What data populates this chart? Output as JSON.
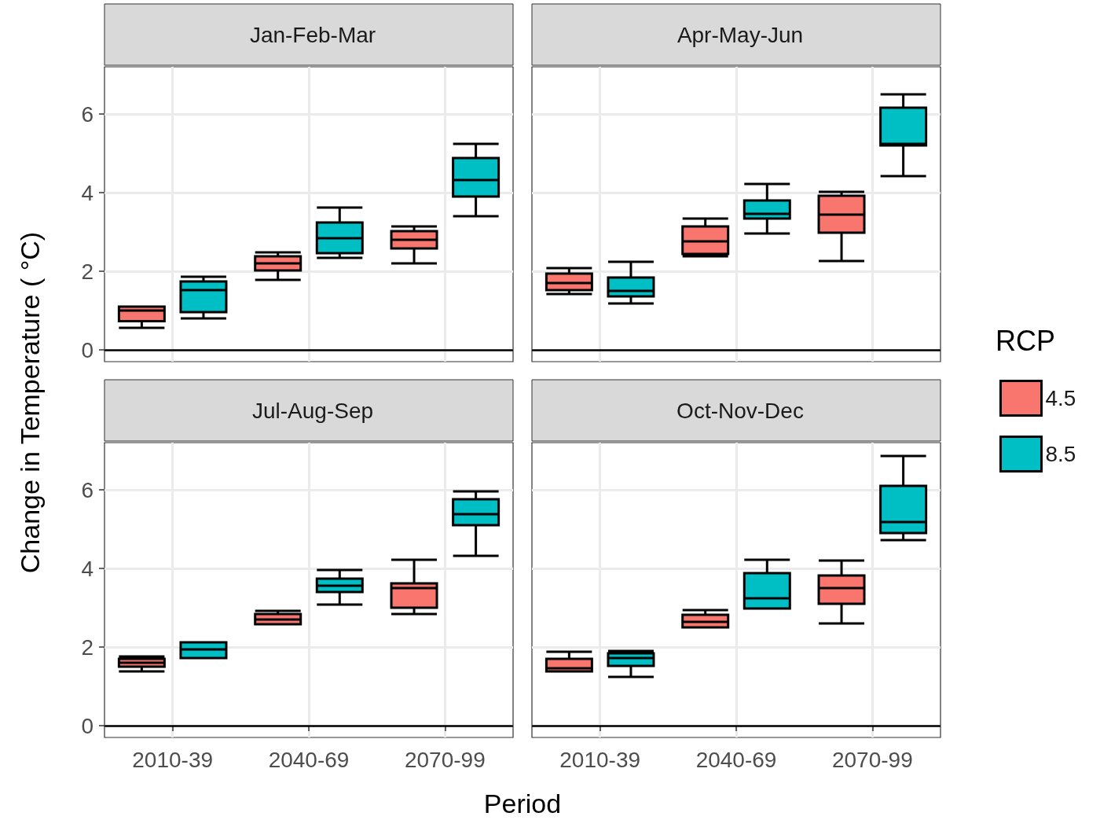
{
  "chart_data": [
    {
      "type": "box",
      "title": "Jan-Feb-Mar",
      "ylabel": "Change in Temperature ( °C)",
      "categories": [
        "2010-39",
        "2040-69",
        "2070-99"
      ],
      "ylim": [
        -0.3,
        7.2
      ],
      "yticks": [
        0,
        2,
        4,
        6
      ],
      "grid": true,
      "tick_labels": "y",
      "ref_lines": [
        {
          "axis": "y",
          "value": 0,
          "color": "#000000"
        }
      ],
      "series": [
        {
          "color": "#f8766d",
          "boxes": [
            {
              "low": 0.56,
              "q1": 0.73,
              "median": 1.0,
              "q3": 1.1,
              "high": 1.1
            },
            {
              "low": 1.78,
              "q1": 2.02,
              "median": 2.2,
              "q3": 2.38,
              "high": 2.48
            },
            {
              "low": 2.2,
              "q1": 2.58,
              "median": 2.8,
              "q3": 3.02,
              "high": 3.14
            }
          ]
        },
        {
          "color": "#00bfc4",
          "boxes": [
            {
              "low": 0.8,
              "q1": 0.96,
              "median": 1.52,
              "q3": 1.74,
              "high": 1.86
            },
            {
              "low": 2.34,
              "q1": 2.46,
              "median": 2.84,
              "q3": 3.24,
              "high": 3.62
            },
            {
              "low": 3.4,
              "q1": 3.9,
              "median": 4.32,
              "q3": 4.88,
              "high": 5.24
            }
          ]
        }
      ]
    },
    {
      "type": "box",
      "title": "Apr-May-Jun",
      "categories": [
        "2010-39",
        "2040-69",
        "2070-99"
      ],
      "ylim": [
        -0.3,
        7.2
      ],
      "yticks": [
        0,
        2,
        4,
        6
      ],
      "grid": true,
      "tick_labels": false,
      "legend": "right",
      "legend_title": "RCP",
      "ref_lines": [
        {
          "axis": "y",
          "value": 0,
          "color": "#000000"
        }
      ],
      "series": [
        {
          "name": "4.5",
          "color": "#f8766d",
          "boxes": [
            {
              "low": 1.42,
              "q1": 1.52,
              "median": 1.7,
              "q3": 1.94,
              "high": 2.08
            },
            {
              "low": 2.38,
              "q1": 2.44,
              "median": 2.76,
              "q3": 3.14,
              "high": 3.34
            },
            {
              "low": 2.26,
              "q1": 2.98,
              "median": 3.44,
              "q3": 3.92,
              "high": 4.02
            }
          ]
        },
        {
          "name": "8.5",
          "color": "#00bfc4",
          "boxes": [
            {
              "low": 1.18,
              "q1": 1.36,
              "median": 1.5,
              "q3": 1.84,
              "high": 2.24
            },
            {
              "low": 2.96,
              "q1": 3.34,
              "median": 3.46,
              "q3": 3.8,
              "high": 4.22
            },
            {
              "low": 4.42,
              "q1": 5.2,
              "median": 5.24,
              "q3": 6.16,
              "high": 6.5
            }
          ]
        }
      ]
    },
    {
      "type": "box",
      "title": "Jul-Aug-Sep",
      "xlabel": "Period",
      "categories": [
        "2010-39",
        "2040-69",
        "2070-99"
      ],
      "ylim": [
        -0.3,
        7.2
      ],
      "yticks": [
        0,
        2,
        4,
        6
      ],
      "grid": true,
      "ref_lines": [
        {
          "axis": "y",
          "value": 0,
          "color": "#000000"
        }
      ],
      "series": [
        {
          "color": "#f8766d",
          "boxes": [
            {
              "low": 1.38,
              "q1": 1.5,
              "median": 1.6,
              "q3": 1.7,
              "high": 1.76
            },
            {
              "low": 2.58,
              "q1": 2.58,
              "median": 2.7,
              "q3": 2.84,
              "high": 2.92
            },
            {
              "low": 2.84,
              "q1": 3.0,
              "median": 3.5,
              "q3": 3.62,
              "high": 4.22
            }
          ]
        },
        {
          "color": "#00bfc4",
          "boxes": [
            {
              "low": 1.72,
              "q1": 1.72,
              "median": 1.94,
              "q3": 2.12,
              "high": 2.12
            },
            {
              "low": 3.08,
              "q1": 3.4,
              "median": 3.56,
              "q3": 3.74,
              "high": 3.96
            },
            {
              "low": 4.32,
              "q1": 5.1,
              "median": 5.38,
              "q3": 5.76,
              "high": 5.96
            }
          ]
        }
      ]
    },
    {
      "type": "box",
      "title": "Oct-Nov-Dec",
      "categories": [
        "2010-39",
        "2040-69",
        "2070-99"
      ],
      "ylim": [
        -0.3,
        7.2
      ],
      "yticks": [
        0,
        2,
        4,
        6
      ],
      "grid": true,
      "tick_labels": "x",
      "ref_lines": [
        {
          "axis": "y",
          "value": 0,
          "color": "#000000"
        }
      ],
      "series": [
        {
          "color": "#f8766d",
          "boxes": [
            {
              "low": 1.38,
              "q1": 1.38,
              "median": 1.46,
              "q3": 1.7,
              "high": 1.88
            },
            {
              "low": 2.5,
              "q1": 2.5,
              "median": 2.64,
              "q3": 2.82,
              "high": 2.94
            },
            {
              "low": 2.6,
              "q1": 3.1,
              "median": 3.5,
              "q3": 3.82,
              "high": 4.2
            }
          ]
        },
        {
          "color": "#00bfc4",
          "boxes": [
            {
              "low": 1.24,
              "q1": 1.52,
              "median": 1.72,
              "q3": 1.84,
              "high": 1.9
            },
            {
              "low": 2.98,
              "q1": 2.98,
              "median": 3.24,
              "q3": 3.88,
              "high": 4.22
            },
            {
              "low": 4.72,
              "q1": 4.9,
              "median": 5.18,
              "q3": 6.1,
              "high": 6.86
            }
          ]
        }
      ]
    }
  ]
}
